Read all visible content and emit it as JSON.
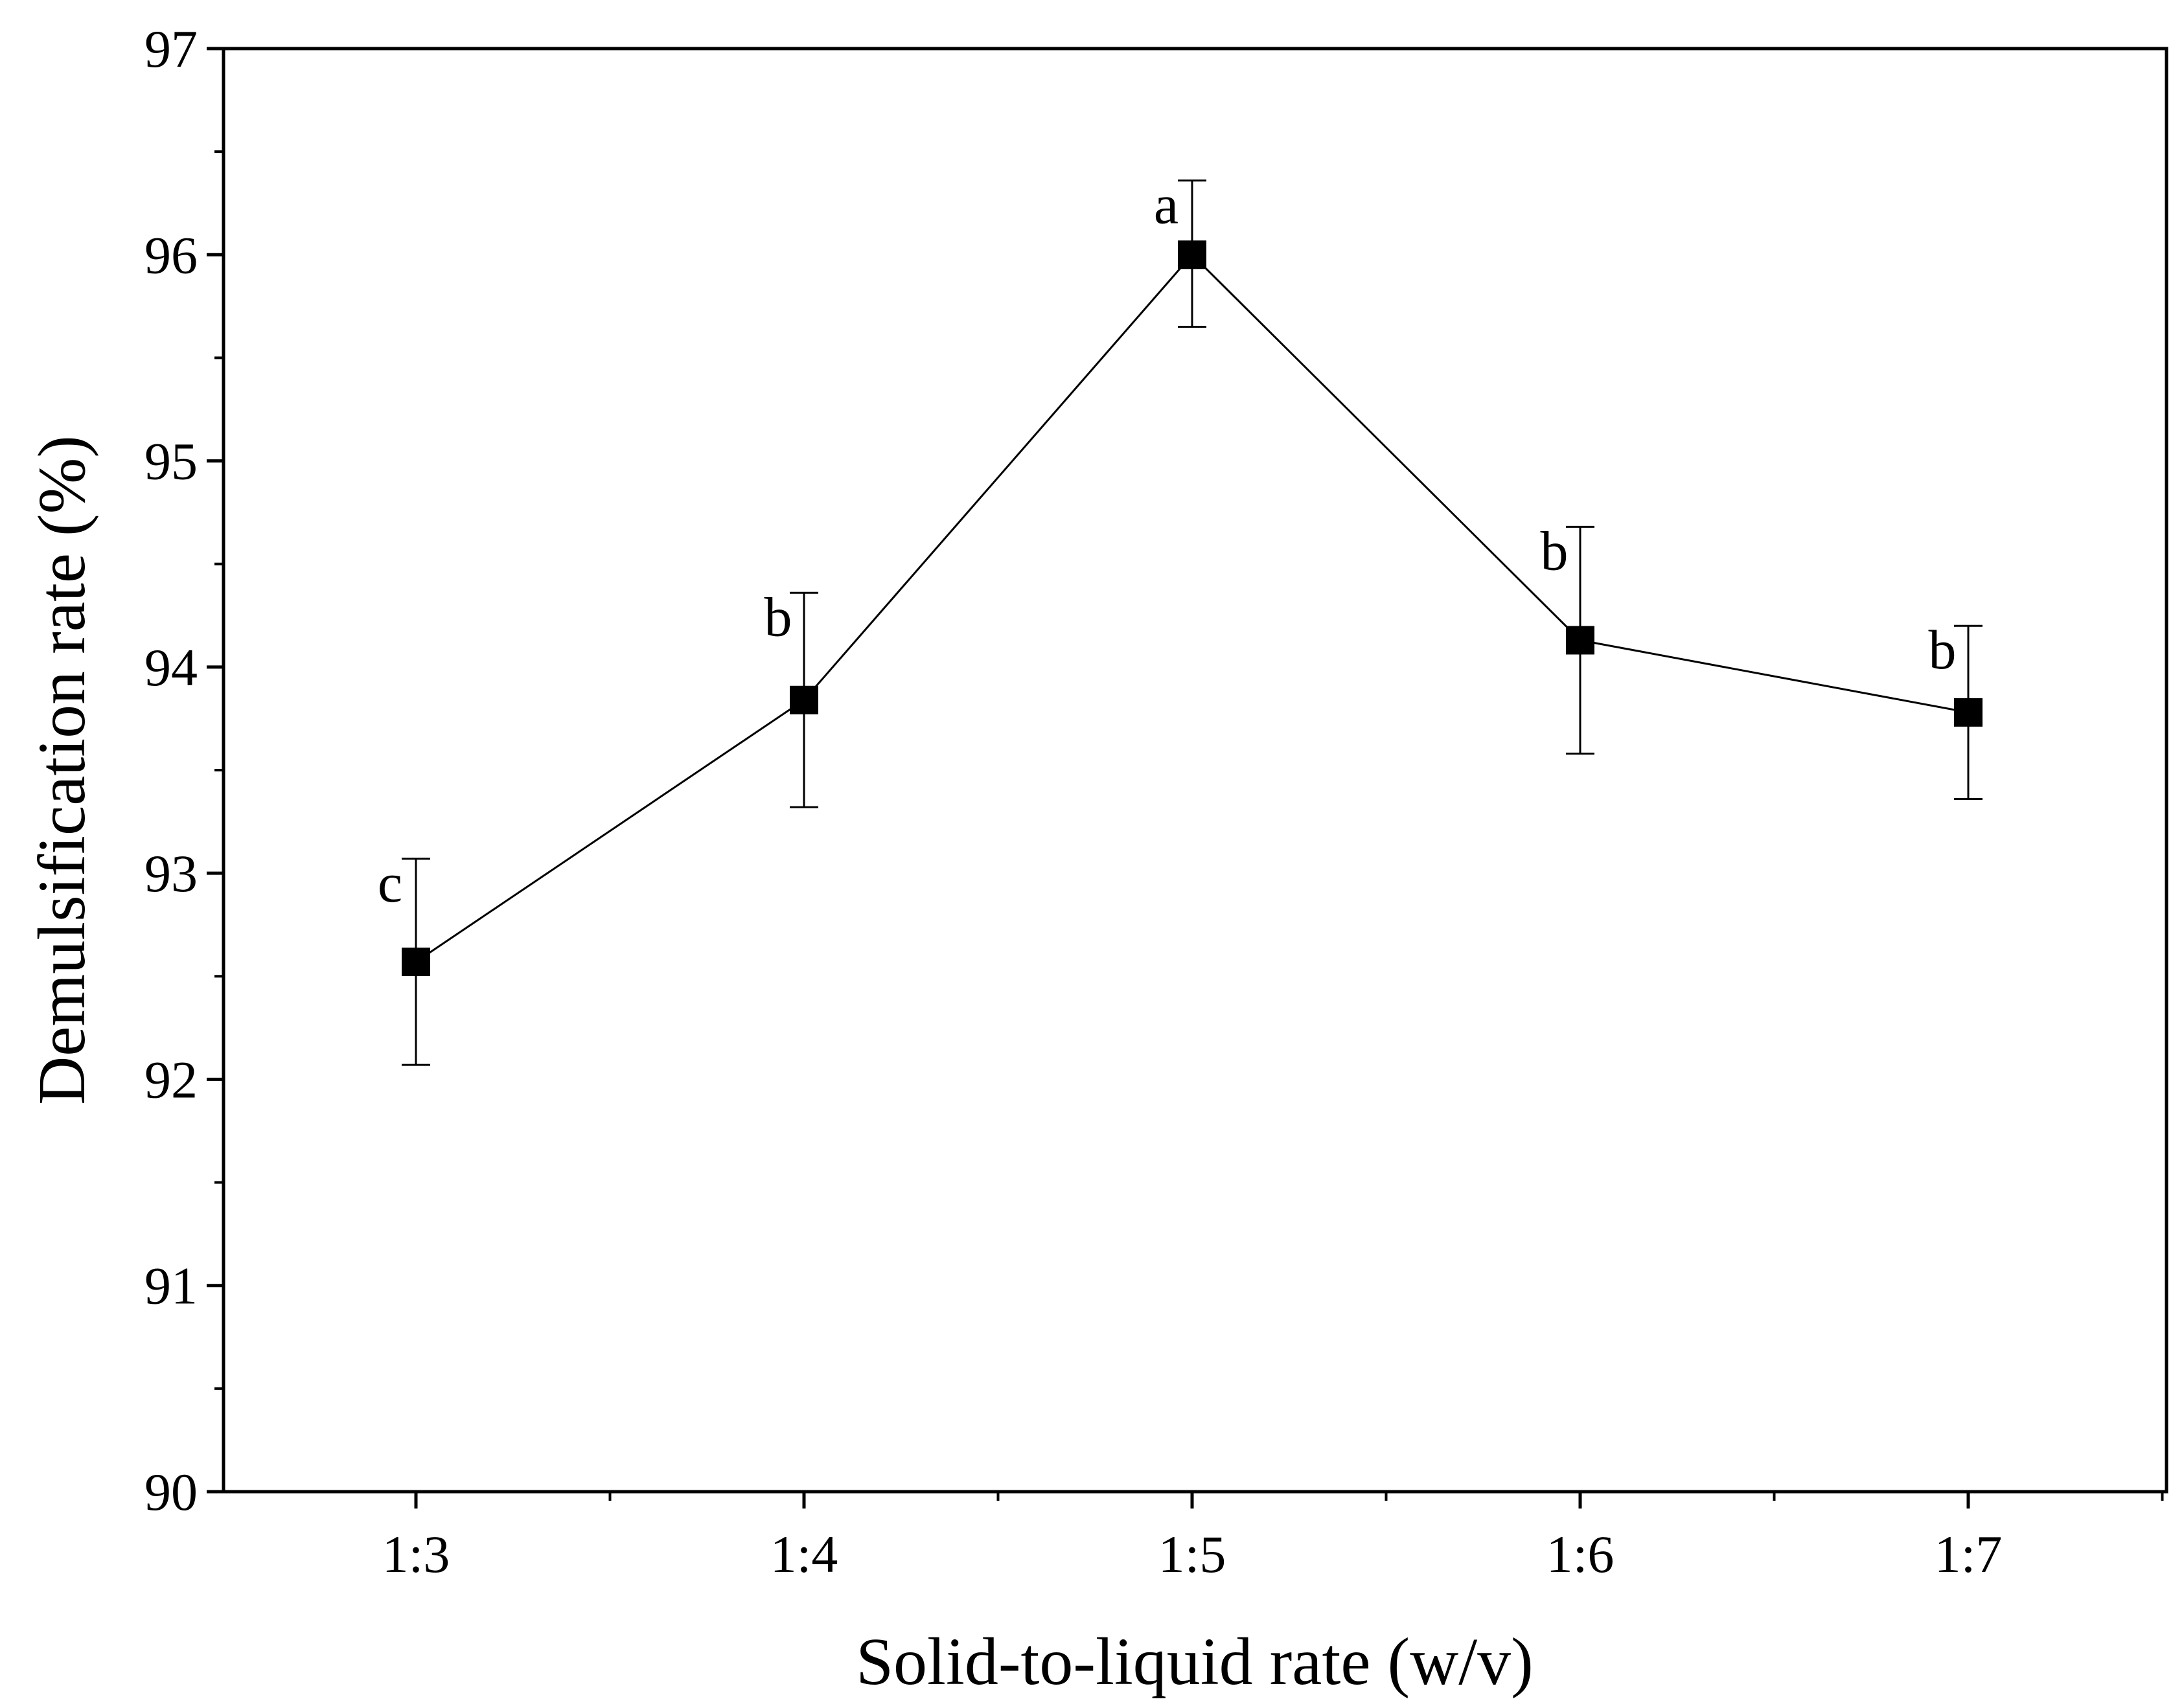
{
  "chart_data": {
    "type": "line",
    "title": "",
    "xlabel": "Solid-to-liquid rate (w/v)",
    "ylabel": "Demulsification rate (%)",
    "ylim": [
      90,
      97
    ],
    "yticks": [
      "90",
      "91",
      "92",
      "93",
      "94",
      "95",
      "96",
      "97"
    ],
    "categories": [
      "1:3",
      "1:4",
      "1:5",
      "1:6",
      "1:7"
    ],
    "series": [
      {
        "name": "Demulsification rate",
        "marker": "square",
        "values": [
          92.57,
          93.84,
          96.0,
          94.13,
          93.78
        ],
        "error_upper": [
          93.07,
          94.36,
          96.36,
          94.68,
          94.2
        ],
        "error_lower": [
          92.07,
          93.32,
          95.65,
          93.58,
          93.36
        ],
        "labels": [
          "c",
          "b",
          "a",
          "b",
          "b"
        ]
      }
    ],
    "legend": "none",
    "grid": false
  },
  "colors": {
    "line": "#000000",
    "marker": "#000000",
    "axes": "#000000"
  }
}
